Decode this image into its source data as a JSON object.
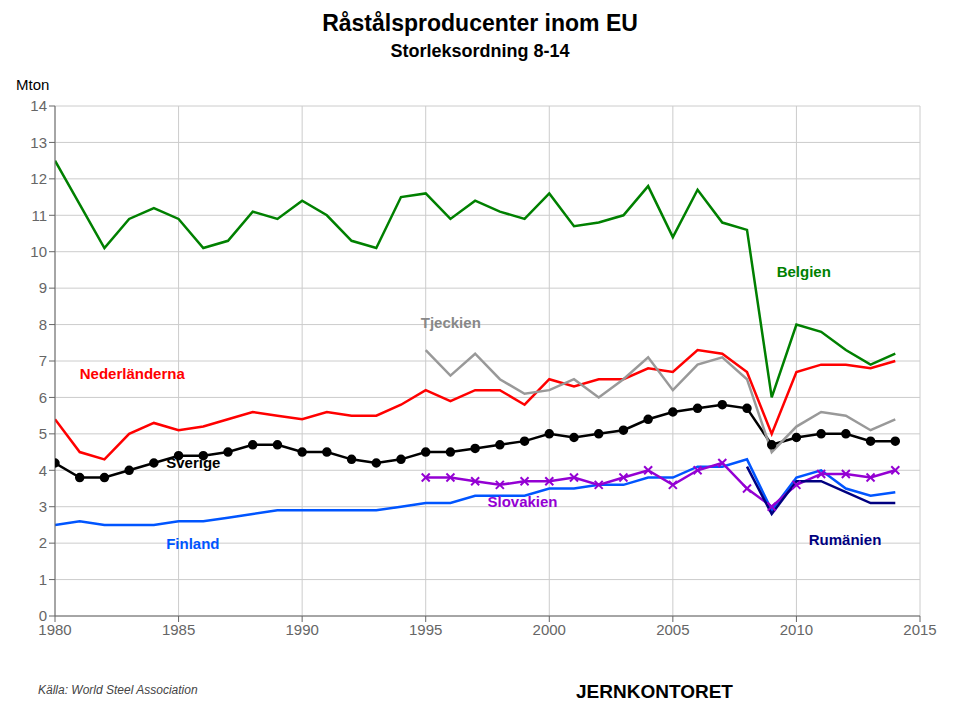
{
  "chart_data": {
    "type": "line",
    "title": "Råstålsproducenter inom EU",
    "subtitle": "Storleksordning 8-14",
    "ylabel": "Mton",
    "source": "Källa: World Steel Association",
    "credit": "JERNKONTORET",
    "x": [
      1980,
      1981,
      1982,
      1983,
      1984,
      1985,
      1986,
      1987,
      1988,
      1989,
      1990,
      1991,
      1992,
      1993,
      1994,
      1995,
      1996,
      1997,
      1998,
      1999,
      2000,
      2001,
      2002,
      2003,
      2004,
      2005,
      2006,
      2007,
      2008,
      2009,
      2010,
      2011,
      2012,
      2013,
      2014
    ],
    "xlim": [
      1980,
      2015
    ],
    "xticks": [
      1980,
      1985,
      1990,
      1995,
      2000,
      2005,
      2010,
      2015
    ],
    "ylim": [
      0,
      14
    ],
    "yticks": [
      0,
      1,
      2,
      3,
      4,
      5,
      6,
      7,
      8,
      9,
      10,
      11,
      12,
      13,
      14
    ],
    "grid": true,
    "series": [
      {
        "name": "Belgien",
        "color": "#008000",
        "values": [
          12.5,
          11.3,
          10.1,
          10.9,
          11.2,
          10.9,
          10.1,
          10.3,
          11.1,
          10.9,
          11.4,
          11.0,
          10.3,
          10.1,
          11.5,
          11.6,
          10.9,
          11.4,
          11.1,
          10.9,
          11.6,
          10.7,
          10.8,
          11.0,
          11.8,
          10.4,
          11.7,
          10.8,
          10.6,
          6.0,
          8.0,
          7.8,
          7.3,
          6.9,
          7.2
        ]
      },
      {
        "name": "Nederländerna",
        "color": "#ff0000",
        "values": [
          5.4,
          4.5,
          4.3,
          5.0,
          5.3,
          5.1,
          5.2,
          5.4,
          5.6,
          5.5,
          5.4,
          5.6,
          5.5,
          5.5,
          5.8,
          6.2,
          5.9,
          6.2,
          6.2,
          5.8,
          6.5,
          6.3,
          6.5,
          6.5,
          6.8,
          6.7,
          7.3,
          7.2,
          6.7,
          5.0,
          6.7,
          6.9,
          6.9,
          6.8,
          7.0
        ]
      },
      {
        "name": "Sverige",
        "color": "#000000",
        "marker": "circle",
        "values": [
          4.2,
          3.8,
          3.8,
          4.0,
          4.2,
          4.4,
          4.4,
          4.5,
          4.7,
          4.7,
          4.5,
          4.5,
          4.3,
          4.2,
          4.3,
          4.5,
          4.5,
          4.6,
          4.7,
          4.8,
          5.0,
          4.9,
          5.0,
          5.1,
          5.4,
          5.6,
          5.7,
          5.8,
          5.7,
          4.7,
          4.9,
          5.0,
          5.0,
          4.8,
          4.8
        ]
      },
      {
        "name": "Finland",
        "color": "#0055ff",
        "values": [
          2.5,
          2.6,
          2.5,
          2.5,
          2.5,
          2.6,
          2.6,
          2.7,
          2.8,
          2.9,
          2.9,
          2.9,
          2.9,
          2.9,
          3.0,
          3.1,
          3.1,
          3.3,
          3.3,
          3.3,
          3.5,
          3.5,
          3.6,
          3.6,
          3.8,
          3.8,
          4.1,
          4.1,
          4.3,
          2.9,
          3.8,
          4.0,
          3.5,
          3.3,
          3.4
        ]
      },
      {
        "name": "Tjeckien",
        "color": "#999999",
        "values": [
          null,
          null,
          null,
          null,
          null,
          null,
          null,
          null,
          null,
          null,
          null,
          null,
          null,
          null,
          null,
          7.3,
          6.6,
          7.2,
          6.5,
          6.1,
          6.2,
          6.5,
          6.0,
          6.5,
          7.1,
          6.2,
          6.9,
          7.1,
          6.5,
          4.5,
          5.2,
          5.6,
          5.5,
          5.1,
          5.4
        ]
      },
      {
        "name": "Slovakien",
        "color": "#9400d3",
        "marker": "cross",
        "values": [
          null,
          null,
          null,
          null,
          null,
          null,
          null,
          null,
          null,
          null,
          null,
          null,
          null,
          null,
          null,
          3.8,
          3.8,
          3.7,
          3.6,
          3.7,
          3.7,
          3.8,
          3.6,
          3.8,
          4.0,
          3.6,
          4.0,
          4.2,
          3.5,
          3.0,
          3.6,
          3.9,
          3.9,
          3.8,
          4.0
        ]
      },
      {
        "name": "Rumänien",
        "color": "#000080",
        "values": [
          null,
          null,
          null,
          null,
          null,
          null,
          null,
          null,
          null,
          null,
          null,
          null,
          null,
          null,
          null,
          null,
          null,
          null,
          null,
          null,
          null,
          null,
          null,
          null,
          null,
          null,
          null,
          null,
          4.1,
          2.8,
          3.7,
          3.7,
          3.4,
          3.1,
          3.1
        ]
      }
    ],
    "annotations": [
      {
        "text": "Belgien",
        "x": 2009.2,
        "y": 9.3,
        "color": "#008000"
      },
      {
        "text": "Nederländerna",
        "x": 1981.0,
        "y": 6.5,
        "color": "#ff0000"
      },
      {
        "text": "Sverige",
        "x": 1984.5,
        "y": 4.05,
        "color": "#000000"
      },
      {
        "text": "Finland",
        "x": 1984.5,
        "y": 1.85,
        "color": "#0055ff"
      },
      {
        "text": "Tjeckien",
        "x": 1994.8,
        "y": 7.9,
        "color": "#888888"
      },
      {
        "text": "Slovakien",
        "x": 1997.5,
        "y": 3.0,
        "color": "#9400d3"
      },
      {
        "text": "Rumänien",
        "x": 2010.5,
        "y": 1.95,
        "color": "#000080"
      }
    ]
  }
}
